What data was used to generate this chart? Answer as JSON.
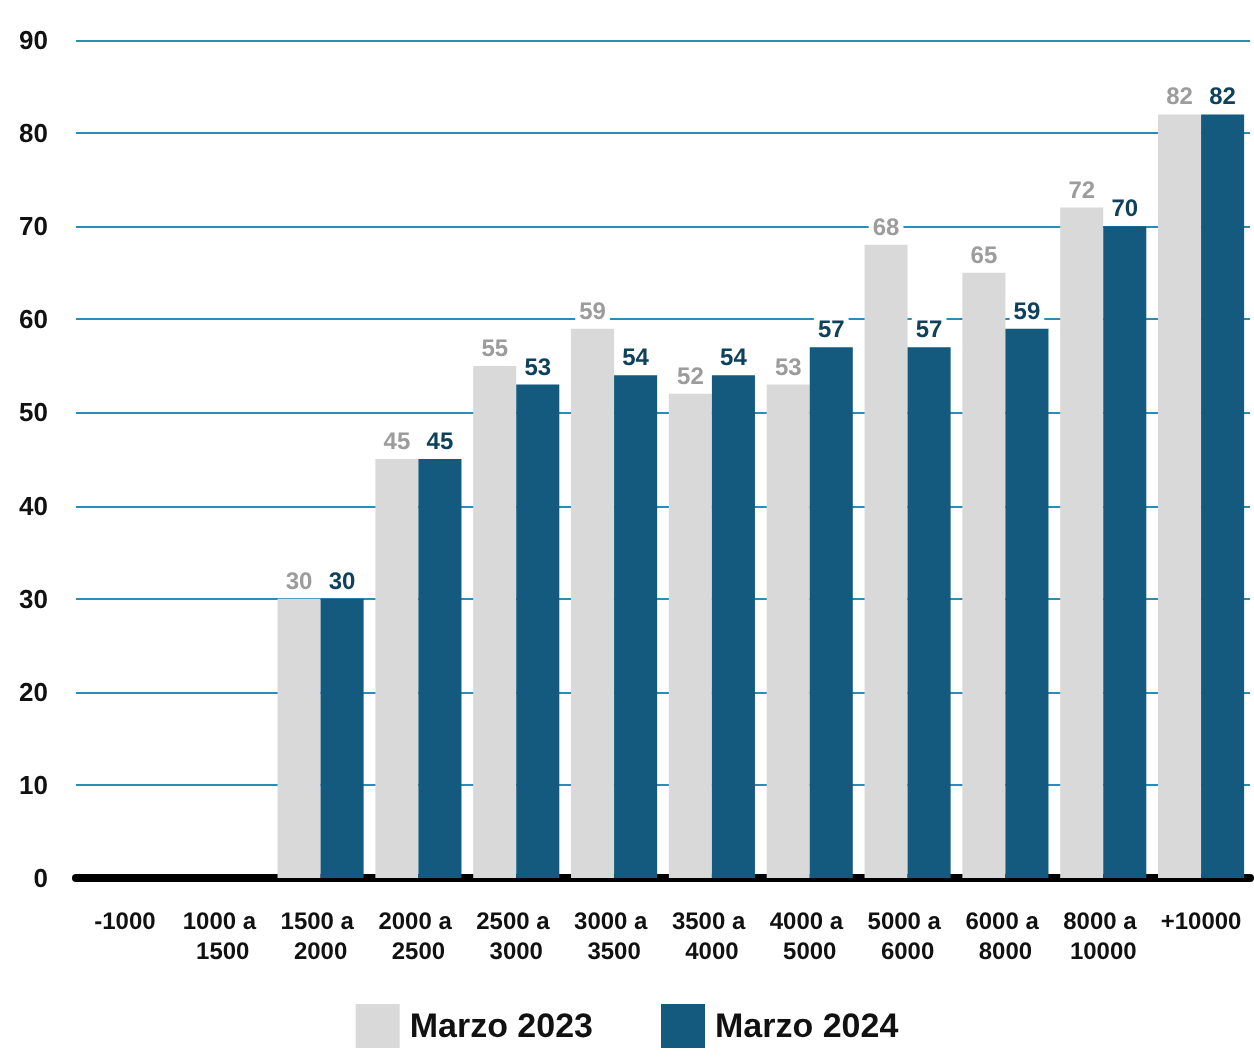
{
  "chart_data": {
    "type": "bar",
    "categories": [
      "-1000",
      "1000 a 1500",
      "1500 a 2000",
      "2000 a 2500",
      "2500 a 3000",
      "3000 a 3500",
      "3500 a 4000",
      "4000 a 5000",
      "5000 a 6000",
      "6000 a 8000",
      "8000 a 10000",
      "+10000"
    ],
    "series": [
      {
        "name": "Marzo 2023",
        "color": "#d9d9d9",
        "values": [
          null,
          null,
          30,
          45,
          55,
          59,
          52,
          53,
          68,
          65,
          72,
          82
        ]
      },
      {
        "name": "Marzo 2024",
        "color": "#135a7e",
        "values": [
          null,
          null,
          30,
          45,
          53,
          54,
          54,
          57,
          57,
          59,
          70,
          82
        ]
      }
    ],
    "ylim": [
      0,
      90
    ],
    "yticks": [
      0,
      10,
      20,
      30,
      40,
      50,
      60,
      70,
      80,
      90
    ],
    "grid": "y",
    "legend": "bottom",
    "data_labels": true
  }
}
